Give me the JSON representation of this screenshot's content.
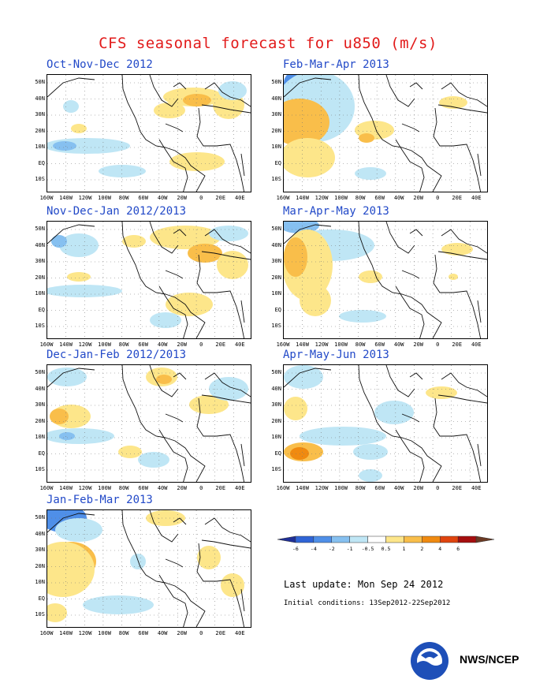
{
  "title": "CFS seasonal forecast for u850 (m/s)",
  "panels": [
    {
      "title": "Oct-Nov-Dec 2012"
    },
    {
      "title": "Feb-Mar-Apr 2013"
    },
    {
      "title": "Nov-Dec-Jan 2012/2013"
    },
    {
      "title": "Mar-Apr-May 2013"
    },
    {
      "title": "Dec-Jan-Feb 2012/2013"
    },
    {
      "title": "Apr-May-Jun 2013"
    },
    {
      "title": "Jan-Feb-Mar 2013"
    }
  ],
  "lat_labels": [
    "50N",
    "40N",
    "30N",
    "20N",
    "10N",
    "EQ",
    "10S"
  ],
  "lon_labels": [
    "160W",
    "140W",
    "120W",
    "100W",
    "80W",
    "60W",
    "40W",
    "20W",
    "0",
    "20E",
    "40E"
  ],
  "colorbar": {
    "labels": [
      "-6",
      "-4",
      "-2",
      "-1",
      "-0.5",
      "0.5",
      "1",
      "2",
      "4",
      "6"
    ],
    "colors": [
      "#1f2f96",
      "#2f64d6",
      "#4f8fe8",
      "#86c0f0",
      "#bfe6f5",
      "#ffffff",
      "#fde68a",
      "#f9be4a",
      "#f08a10",
      "#e0440e",
      "#a50e0e",
      "#6b3a24"
    ]
  },
  "footer": {
    "last_update": "Last update: Mon Sep 24 2012",
    "initial_conditions": "Initial conditions: 13Sep2012-22Sep2012",
    "agency": "NWS/NCEP"
  }
}
